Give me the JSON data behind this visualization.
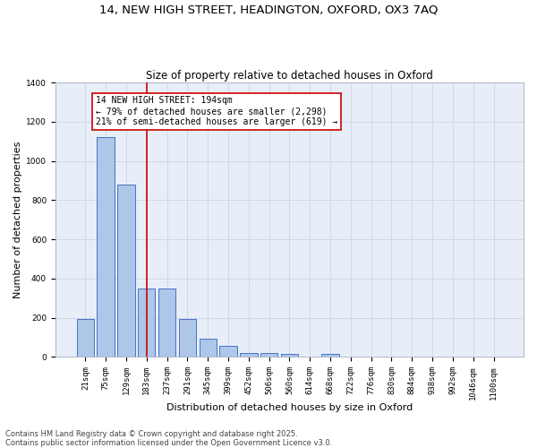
{
  "title1": "14, NEW HIGH STREET, HEADINGTON, OXFORD, OX3 7AQ",
  "title2": "Size of property relative to detached houses in Oxford",
  "xlabel": "Distribution of detached houses by size in Oxford",
  "ylabel": "Number of detached properties",
  "categories": [
    "21sqm",
    "75sqm",
    "129sqm",
    "183sqm",
    "237sqm",
    "291sqm",
    "345sqm",
    "399sqm",
    "452sqm",
    "506sqm",
    "560sqm",
    "614sqm",
    "668sqm",
    "722sqm",
    "776sqm",
    "830sqm",
    "884sqm",
    "938sqm",
    "992sqm",
    "1046sqm",
    "1100sqm"
  ],
  "values": [
    195,
    1120,
    880,
    350,
    350,
    195,
    95,
    58,
    22,
    22,
    18,
    0,
    15,
    0,
    0,
    0,
    0,
    0,
    0,
    0,
    0
  ],
  "bar_color": "#aec6e8",
  "bar_edge_color": "#4472c4",
  "vline_x": 3,
  "vline_color": "#cc0000",
  "annotation_text": "14 NEW HIGH STREET: 194sqm\n← 79% of detached houses are smaller (2,298)\n21% of semi-detached houses are larger (619) →",
  "annotation_box_color": "#ffffff",
  "annotation_box_edge": "#cc0000",
  "grid_color": "#d0d8e8",
  "background_color": "#e8eef8",
  "ylim": [
    0,
    1400
  ],
  "yticks": [
    0,
    200,
    400,
    600,
    800,
    1000,
    1200,
    1400
  ],
  "footnote": "Contains HM Land Registry data © Crown copyright and database right 2025.\nContains public sector information licensed under the Open Government Licence v3.0.",
  "title_fontsize": 9.5,
  "subtitle_fontsize": 8.5,
  "axis_label_fontsize": 8,
  "tick_fontsize": 6.5,
  "annotation_fontsize": 7,
  "footnote_fontsize": 6
}
